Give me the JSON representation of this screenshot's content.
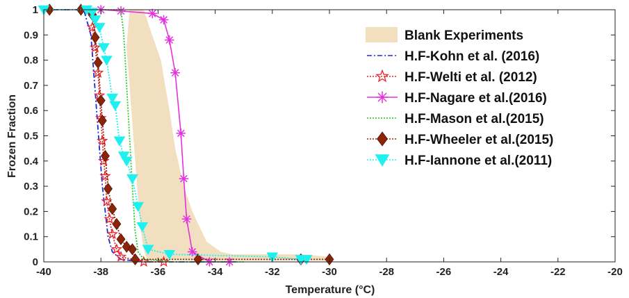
{
  "chart_data": {
    "type": "line",
    "title": "",
    "xlabel": "Temperature (°C)",
    "ylabel": "Frozen Fraction",
    "xlim": [
      -40,
      -20
    ],
    "ylim": [
      0,
      1
    ],
    "xticks": [
      -40,
      -38,
      -36,
      -34,
      -32,
      -30,
      -28,
      -26,
      -24,
      -22,
      -20
    ],
    "yticks": [
      0,
      0.1,
      0.2,
      0.3,
      0.4,
      0.5,
      0.6,
      0.7,
      0.8,
      0.9,
      1
    ],
    "grid": false,
    "legend_position": "top-right",
    "band": {
      "name": "Blank Experiments",
      "color": "#f2dfc0",
      "upper": [
        [
          -37.0,
          1.0
        ],
        [
          -36.5,
          1.0
        ],
        [
          -36.3,
          0.93
        ],
        [
          -35.9,
          0.8
        ],
        [
          -35.6,
          0.6
        ],
        [
          -35.4,
          0.45
        ],
        [
          -35.1,
          0.3
        ],
        [
          -34.8,
          0.2
        ],
        [
          -34.3,
          0.08
        ],
        [
          -33.8,
          0.04
        ],
        [
          -33.4,
          0.03
        ],
        [
          -31.0,
          0.03
        ],
        [
          -30.0,
          0.02
        ]
      ],
      "lower": [
        [
          -37.0,
          1.0
        ],
        [
          -37.1,
          0.85
        ],
        [
          -37.0,
          0.7
        ],
        [
          -36.9,
          0.55
        ],
        [
          -36.8,
          0.4
        ],
        [
          -36.7,
          0.25
        ],
        [
          -36.6,
          0.12
        ],
        [
          -36.5,
          0.05
        ],
        [
          -36.4,
          0.01
        ],
        [
          -35.0,
          0.005
        ],
        [
          -30.0,
          0.005
        ]
      ]
    },
    "series": [
      {
        "name": "H.F-Kohn et al. (2016)",
        "color": "#1a2bd6",
        "style": "dashdot",
        "marker": "none",
        "points": [
          [
            -40,
            1.0
          ],
          [
            -38.6,
            1.0
          ],
          [
            -38.35,
            0.9
          ],
          [
            -38.25,
            0.75
          ],
          [
            -38.15,
            0.6
          ],
          [
            -38.05,
            0.45
          ],
          [
            -37.95,
            0.3
          ],
          [
            -37.85,
            0.2
          ],
          [
            -37.75,
            0.1
          ],
          [
            -37.6,
            0.04
          ],
          [
            -37.3,
            0.01
          ],
          [
            -36.5,
            0.0
          ],
          [
            -34.0,
            0.0
          ],
          [
            -33.2,
            0.0
          ]
        ]
      },
      {
        "name": "H.F-Welti et al. (2012)",
        "color": "#e8222a",
        "style": "dotted",
        "marker": "star",
        "points": [
          [
            -38.3,
            0.93
          ],
          [
            -38.2,
            0.85
          ],
          [
            -38.1,
            0.75
          ],
          [
            -38.05,
            0.66
          ],
          [
            -38.0,
            0.57
          ],
          [
            -37.95,
            0.48
          ],
          [
            -37.9,
            0.4
          ],
          [
            -37.85,
            0.34
          ],
          [
            -37.8,
            0.24
          ],
          [
            -37.7,
            0.17
          ],
          [
            -37.6,
            0.11
          ],
          [
            -37.45,
            0.05
          ],
          [
            -37.3,
            0.02
          ],
          [
            -36.5,
            0.0
          ],
          [
            -35.8,
            0.0
          ]
        ]
      },
      {
        "name": "H.F-Nagare et al.(2016)",
        "color": "#e630e0",
        "style": "solid",
        "marker": "asterisk",
        "points": [
          [
            -38.0,
            1.0
          ],
          [
            -37.3,
            0.995
          ],
          [
            -36.2,
            0.985
          ],
          [
            -35.8,
            0.96
          ],
          [
            -35.6,
            0.88
          ],
          [
            -35.4,
            0.75
          ],
          [
            -35.2,
            0.51
          ],
          [
            -35.1,
            0.33
          ],
          [
            -35.0,
            0.17
          ],
          [
            -34.8,
            0.04
          ],
          [
            -34.2,
            0.0
          ],
          [
            -33.5,
            0.0
          ]
        ]
      },
      {
        "name": "H.F-Mason et al.(2015)",
        "color": "#22cc22",
        "style": "dotted",
        "marker": "none",
        "points": [
          [
            -40,
            1.0
          ],
          [
            -37.3,
            1.0
          ],
          [
            -37.2,
            0.9
          ],
          [
            -37.1,
            0.7
          ],
          [
            -37.0,
            0.5
          ],
          [
            -36.9,
            0.3
          ],
          [
            -36.8,
            0.12
          ],
          [
            -36.7,
            0.04
          ],
          [
            -36.5,
            0.01
          ],
          [
            -35.5,
            0.0
          ],
          [
            -33.0,
            0.0
          ]
        ]
      },
      {
        "name": "H.F-Wheeler et al.(2015)",
        "color": "#8b2408",
        "style": "dotted",
        "marker": "diamond",
        "points": [
          [
            -39.8,
            1.0
          ],
          [
            -38.7,
            1.0
          ],
          [
            -38.3,
            0.98
          ],
          [
            -38.2,
            0.89
          ],
          [
            -38.1,
            0.79
          ],
          [
            -38.0,
            0.64
          ],
          [
            -37.95,
            0.56
          ],
          [
            -37.85,
            0.42
          ],
          [
            -37.75,
            0.29
          ],
          [
            -37.6,
            0.21
          ],
          [
            -37.45,
            0.15
          ],
          [
            -37.3,
            0.09
          ],
          [
            -37.1,
            0.06
          ],
          [
            -36.9,
            0.05
          ],
          [
            -36.8,
            0.01
          ],
          [
            -34.6,
            0.01
          ],
          [
            -31.0,
            0.01
          ],
          [
            -30.0,
            0.01
          ]
        ]
      },
      {
        "name": "H.F-Iannone et al.(2011)",
        "color": "#1ef0f0",
        "style": "dotted",
        "marker": "triangle-down",
        "points": [
          [
            -40,
            1.0
          ],
          [
            -38.5,
            1.0
          ],
          [
            -38.3,
            0.99
          ],
          [
            -38.2,
            0.96
          ],
          [
            -38.05,
            0.93
          ],
          [
            -37.9,
            0.85
          ],
          [
            -37.8,
            0.8
          ],
          [
            -37.6,
            0.65
          ],
          [
            -37.5,
            0.62
          ],
          [
            -37.35,
            0.48
          ],
          [
            -37.2,
            0.42
          ],
          [
            -37.1,
            0.4
          ],
          [
            -36.9,
            0.33
          ],
          [
            -36.7,
            0.22
          ],
          [
            -36.55,
            0.14
          ],
          [
            -36.35,
            0.05
          ],
          [
            -35.6,
            0.03
          ],
          [
            -32.0,
            0.02
          ],
          [
            -31.0,
            0.01
          ],
          [
            -30.8,
            0.01
          ]
        ]
      }
    ]
  }
}
